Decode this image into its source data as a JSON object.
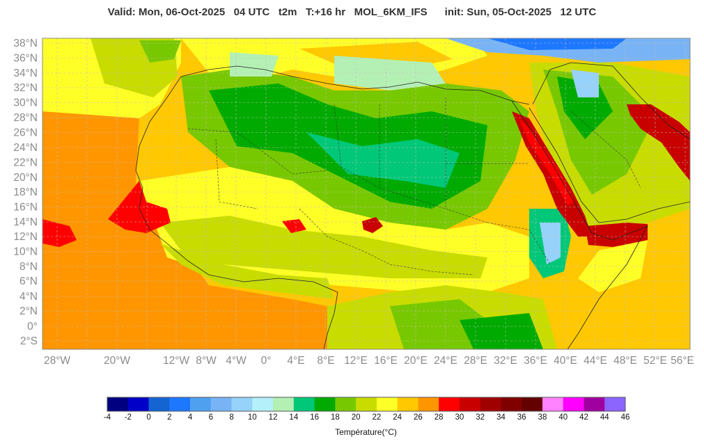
{
  "header": {
    "title": "Valid: Mon, 06-Oct-2025   04 UTC   t2m   T:+16 hr   MOL_6KM_IFS      init: Sun, 05-Oct-2025   12 UTC"
  },
  "map": {
    "lat_labels": [
      "38°N",
      "36°N",
      "34°N",
      "32°N",
      "30°N",
      "28°N",
      "26°N",
      "24°N",
      "22°N",
      "20°N",
      "18°N",
      "16°N",
      "14°N",
      "12°N",
      "10°N",
      "8°N",
      "6°N",
      "4°N",
      "2°N",
      "0°",
      "2°S"
    ],
    "lon_labels": [
      "28°W",
      "20°W",
      "12°W",
      "8°W",
      "4°W",
      "0°",
      "4°E",
      "8°E",
      "12°E",
      "16°E",
      "20°E",
      "24°E",
      "28°E",
      "32°E",
      "36°E",
      "40°E",
      "44°E",
      "48°E",
      "52°E",
      "56°E"
    ]
  },
  "colorbar": {
    "title": "Température(°C)",
    "ticks": [
      "-4",
      "-2",
      "0",
      "2",
      "4",
      "6",
      "8",
      "10",
      "12",
      "14",
      "16",
      "18",
      "20",
      "22",
      "24",
      "26",
      "28",
      "30",
      "32",
      "34",
      "36",
      "38",
      "40",
      "42",
      "44",
      "46"
    ],
    "colors": [
      "#000080",
      "#0000c8",
      "#1464d2",
      "#1e78ff",
      "#50a0f0",
      "#78b4f5",
      "#96d2fa",
      "#b4f0fa",
      "#b4f0b4",
      "#00c878",
      "#00aa00",
      "#78c800",
      "#c8dc00",
      "#ffff28",
      "#ffc800",
      "#ff9600",
      "#ff0000",
      "#c80000",
      "#a00000",
      "#800000",
      "#640000",
      "#ff82ff",
      "#ff00ff",
      "#a000a0",
      "#8c64ff"
    ]
  }
}
